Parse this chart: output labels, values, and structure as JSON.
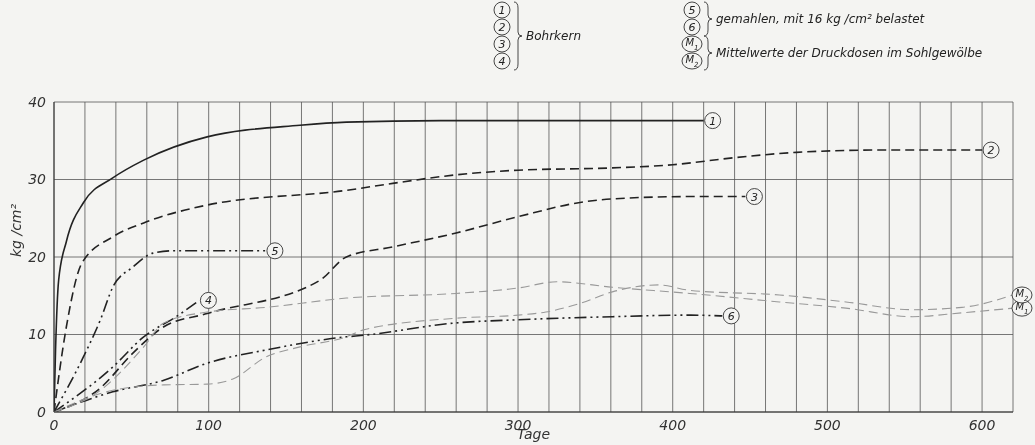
{
  "chart_data": {
    "type": "line",
    "xlabel": "Tage",
    "ylabel": "kg /cm²",
    "xlim": [
      0,
      620
    ],
    "ylim": [
      0,
      40
    ],
    "xticks": [
      0,
      {
        "value": 20,
        "label": null
      },
      {
        "value": 40,
        "label": null
      },
      {
        "value": 60,
        "label": null
      },
      {
        "value": 80,
        "label": null
      },
      100,
      {
        "value": 120,
        "label": null
      },
      {
        "value": 140,
        "label": null
      },
      {
        "value": 160,
        "label": null
      },
      {
        "value": 180,
        "label": null
      },
      200,
      {
        "value": 220,
        "label": null
      },
      {
        "value": 240,
        "label": null
      },
      {
        "value": 260,
        "label": null
      },
      {
        "value": 280,
        "label": null
      },
      300,
      {
        "value": 320,
        "label": null
      },
      {
        "value": 340,
        "label": null
      },
      {
        "value": 360,
        "label": null
      },
      {
        "value": 380,
        "label": null
      },
      400,
      {
        "value": 420,
        "label": null
      },
      {
        "value": 440,
        "label": null
      },
      {
        "value": 460,
        "label": null
      },
      {
        "value": 480,
        "label": null
      },
      500,
      {
        "value": 520,
        "label": null
      },
      {
        "value": 540,
        "label": null
      },
      {
        "value": 560,
        "label": null
      },
      {
        "value": 580,
        "label": null
      },
      600
    ],
    "yticks": [
      0,
      10,
      20,
      30,
      40
    ],
    "grid": true,
    "legend": "top",
    "marker": "none",
    "annotations": [
      "Bohrkern",
      "gemahlen, mit 16 kg /cm² belastet",
      "Mittelwerte der Druckdosen im Sohlgewölbe"
    ],
    "series": [
      {
        "name": "1",
        "color": "#222222",
        "line_style": "solid",
        "x": [
          0,
          1,
          3,
          8,
          19,
          38,
          58,
          99,
          159,
          189,
          250,
          420
        ],
        "values": [
          0,
          8,
          17,
          22,
          27,
          30.2,
          32.5,
          35.5,
          37,
          37.4,
          37.6,
          37.6
        ]
      },
      {
        "name": "2",
        "color": "#222222",
        "line_style": "dashed",
        "x": [
          0,
          8,
          18,
          38,
          58,
          99,
          189,
          219,
          260,
          300,
          361,
          400,
          439,
          480,
          534,
          600
        ],
        "values": [
          0,
          11,
          19.2,
          22.6,
          24.4,
          26.7,
          28.6,
          29.5,
          30.6,
          31.2,
          31.5,
          31.9,
          32.8,
          33.5,
          33.8,
          33.8
        ]
      },
      {
        "name": "3",
        "color": "#222222",
        "line_style": "dashed",
        "x": [
          0,
          30,
          51,
          71,
          99,
          172,
          189,
          219,
          260,
          300,
          342,
          361,
          411,
          447
        ],
        "values": [
          0,
          3.1,
          7.6,
          11,
          12.7,
          17,
          20,
          21.3,
          23.1,
          25.2,
          27.1,
          27.5,
          27.8,
          27.8
        ]
      },
      {
        "name": "4",
        "color": "#222222",
        "line_style": "dashdot",
        "x": [
          0,
          38,
          58,
          79,
          94
        ],
        "values": [
          0,
          5.8,
          9.7,
          12.3,
          14.4
        ]
      },
      {
        "name": "5",
        "color": "#222222",
        "line_style": "dashdot",
        "x": [
          0,
          19,
          30,
          38,
          51,
          64,
          77,
          137
        ],
        "values": [
          0,
          7.1,
          11.9,
          16.1,
          18.7,
          20.5,
          20.8,
          20.8
        ]
      },
      {
        "name": "6",
        "color": "#222222",
        "line_style": "dashdot",
        "x": [
          0,
          38,
          71,
          99,
          137,
          189,
          200,
          260,
          300,
          361,
          411,
          432
        ],
        "values": [
          0,
          2.6,
          4.1,
          6.3,
          8,
          9.7,
          9.9,
          11.5,
          11.9,
          12.3,
          12.5,
          12.4
        ]
      },
      {
        "name": "M$_{1}$",
        "color": "#999999",
        "line_style": "dashed",
        "x": [
          0,
          30,
          58,
          71,
          99,
          137,
          189,
          260,
          300,
          325,
          361,
          411,
          469,
          512,
          555,
          587,
          620
        ],
        "values": [
          0,
          2.8,
          8.4,
          11.5,
          12.9,
          13.5,
          14.7,
          15.3,
          16,
          16.8,
          16.1,
          15.3,
          14.2,
          13.4,
          12.3,
          12.8,
          13.4
        ]
      },
      {
        "name": "M$_{2}$",
        "color": "#999999",
        "line_style": "dashed",
        "x": [
          0,
          38,
          71,
          99,
          116,
          137,
          159,
          189,
          200,
          260,
          300,
          318,
          340,
          361,
          391,
          411,
          469,
          512,
          555,
          587,
          620
        ],
        "values": [
          0,
          2.8,
          3.5,
          3.6,
          4.3,
          7.1,
          8.4,
          9.7,
          10.6,
          12.1,
          12.5,
          12.9,
          14,
          15.5,
          16.4,
          15.7,
          15.1,
          14.2,
          13.2,
          13.5,
          15.1
        ]
      }
    ]
  }
}
